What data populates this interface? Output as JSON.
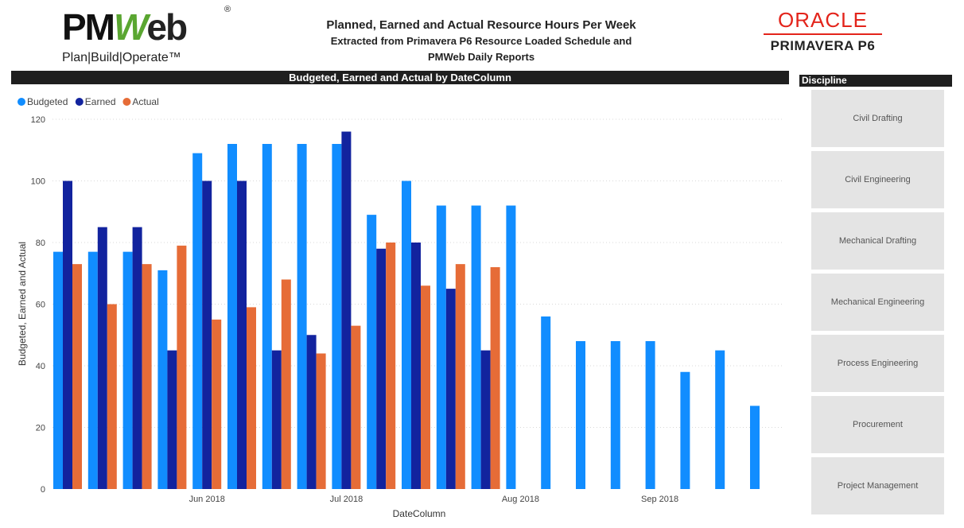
{
  "header": {
    "brand": {
      "pm": "PM",
      "w": "W",
      "eb": "eb",
      "reg": "®",
      "tagline": "Plan|Build|Operate™"
    },
    "title": "Planned, Earned and Actual Resource Hours Per Week",
    "subtitle_line1": "Extracted from Primavera P6 Resource Loaded Schedule and",
    "subtitle_line2": "PMWeb Daily Reports",
    "oracle": "ORACLE",
    "primavera": "PRIMAVERA P6"
  },
  "colors": {
    "budgeted": "#118dff",
    "earned": "#12239e",
    "actual": "#e66c37",
    "text": "#444444",
    "grid": "#d9d9d9"
  },
  "slicer": {
    "title": "Discipline",
    "items": [
      "Civil Drafting",
      "Civil Engineering",
      "Mechanical Drafting",
      "Mechanical Engineering",
      "Process Engineering",
      "Procurement",
      "Project Management"
    ]
  },
  "chart_data": {
    "type": "bar",
    "title": "Budgeted, Earned and Actual by DateColumn",
    "xlabel": "DateColumn",
    "ylabel": "Budgeted, Earned and Actual",
    "ylim": [
      0,
      120
    ],
    "yticks": [
      0,
      20,
      40,
      60,
      80,
      100,
      120
    ],
    "grid": true,
    "legend_position": "top-left",
    "x_tick_labels": [
      {
        "label": "Jun 2018",
        "index": 4
      },
      {
        "label": "Jul 2018",
        "index": 8
      },
      {
        "label": "Aug 2018",
        "index": 13
      },
      {
        "label": "Sep 2018",
        "index": 17
      }
    ],
    "categories_count": 21,
    "series": [
      {
        "name": "Budgeted",
        "values": [
          77,
          77,
          77,
          71,
          109,
          112,
          112,
          112,
          112,
          89,
          100,
          92,
          92,
          92,
          56,
          48,
          48,
          48,
          38,
          45,
          27
        ]
      },
      {
        "name": "Earned",
        "values": [
          100,
          85,
          85,
          45,
          100,
          100,
          45,
          50,
          116,
          78,
          80,
          65,
          45,
          null,
          null,
          null,
          null,
          null,
          null,
          null,
          null
        ]
      },
      {
        "name": "Actual",
        "values": [
          73,
          60,
          73,
          79,
          55,
          59,
          68,
          44,
          53,
          80,
          66,
          73,
          72,
          null,
          null,
          null,
          null,
          null,
          null,
          null,
          null
        ]
      }
    ]
  }
}
